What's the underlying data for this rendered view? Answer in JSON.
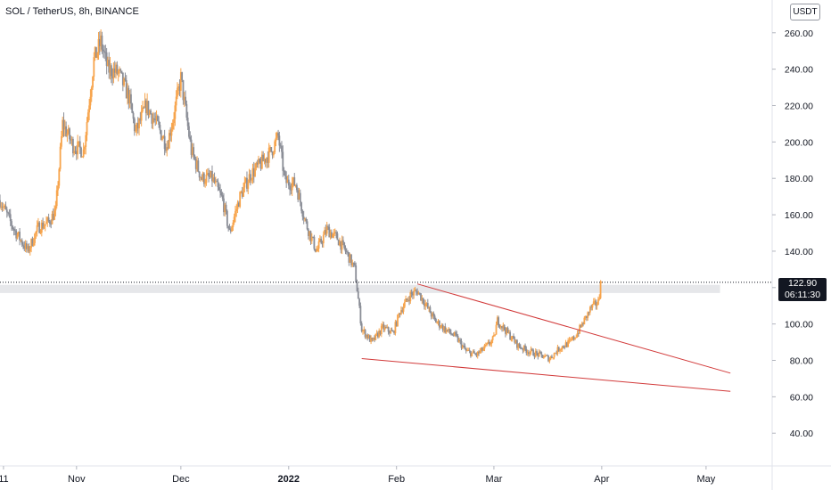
{
  "header": {
    "symbol_title": "SOL / TetherUS, 8h, BINANCE",
    "currency": "USDT"
  },
  "last_price_tag": {
    "price": "122.90",
    "countdown": "06:11:30"
  },
  "colors": {
    "candle_up": "#f7a44c",
    "candle_down": "#8a8d96",
    "trendline": "#d23a3a",
    "support_zone": "#e6e7ea",
    "price_tag_bg": "#131722",
    "axis_text": "#131722"
  },
  "chart_data": {
    "type": "line",
    "title": "SOL / TetherUS, 8h, BINANCE",
    "ylim": [
      22,
      278
    ],
    "y_ticks": [
      "260.00",
      "240.00",
      "220.00",
      "200.00",
      "180.00",
      "160.00",
      "140.00",
      "120.00",
      "100.00",
      "80.00",
      "60.00",
      "40.00"
    ],
    "x_ticks": [
      {
        "label": "11",
        "x": "2021-10-11"
      },
      {
        "label": "Nov",
        "x": "2021-11-01"
      },
      {
        "label": "Dec",
        "x": "2021-12-01"
      },
      {
        "label": "2022",
        "x": "2022-01-01"
      },
      {
        "label": "Feb",
        "x": "2022-02-01"
      },
      {
        "label": "Mar",
        "x": "2022-03-01"
      },
      {
        "label": "Apr",
        "x": "2022-04-01"
      },
      {
        "label": "May",
        "x": "2022-05-01"
      }
    ],
    "xlim": [
      "2021-10-10",
      "2022-05-20"
    ],
    "series": [
      {
        "values": [
          [
            "2021-10-10",
            168
          ],
          [
            "2021-10-14",
            152
          ],
          [
            "2021-10-18",
            140
          ],
          [
            "2021-10-21",
            153
          ],
          [
            "2021-10-24",
            156
          ],
          [
            "2021-10-26",
            162
          ],
          [
            "2021-10-28",
            210
          ],
          [
            "2021-10-31",
            198
          ],
          [
            "2021-11-03",
            195
          ],
          [
            "2021-11-06",
            245
          ],
          [
            "2021-11-08",
            255
          ],
          [
            "2021-11-10",
            240
          ],
          [
            "2021-11-13",
            238
          ],
          [
            "2021-11-16",
            225
          ],
          [
            "2021-11-18",
            205
          ],
          [
            "2021-11-21",
            220
          ],
          [
            "2021-11-24",
            210
          ],
          [
            "2021-11-27",
            198
          ],
          [
            "2021-11-29",
            215
          ],
          [
            "2021-12-01",
            235
          ],
          [
            "2021-12-04",
            195
          ],
          [
            "2021-12-07",
            180
          ],
          [
            "2021-12-10",
            180
          ],
          [
            "2021-12-13",
            168
          ],
          [
            "2021-12-15",
            150
          ],
          [
            "2021-12-18",
            170
          ],
          [
            "2021-12-21",
            182
          ],
          [
            "2021-12-24",
            188
          ],
          [
            "2021-12-27",
            195
          ],
          [
            "2021-12-29",
            203
          ],
          [
            "2021-12-31",
            178
          ],
          [
            "2022-01-03",
            177
          ],
          [
            "2022-01-06",
            155
          ],
          [
            "2022-01-09",
            140
          ],
          [
            "2022-01-12",
            152
          ],
          [
            "2022-01-15",
            147
          ],
          [
            "2022-01-18",
            138
          ],
          [
            "2022-01-20",
            130
          ],
          [
            "2022-01-22",
            97
          ],
          [
            "2022-01-25",
            90
          ],
          [
            "2022-01-28",
            98
          ],
          [
            "2022-01-31",
            95
          ],
          [
            "2022-02-02",
            107
          ],
          [
            "2022-02-05",
            116
          ],
          [
            "2022-02-07",
            118
          ],
          [
            "2022-02-09",
            112
          ],
          [
            "2022-02-12",
            102
          ],
          [
            "2022-02-15",
            97
          ],
          [
            "2022-02-18",
            93
          ],
          [
            "2022-02-21",
            85
          ],
          [
            "2022-02-24",
            83
          ],
          [
            "2022-02-27",
            88
          ],
          [
            "2022-02-29",
            92
          ],
          [
            "2022-03-02",
            102
          ],
          [
            "2022-03-05",
            95
          ],
          [
            "2022-03-08",
            88
          ],
          [
            "2022-03-11",
            85
          ],
          [
            "2022-03-14",
            83
          ],
          [
            "2022-03-17",
            81
          ],
          [
            "2022-03-20",
            87
          ],
          [
            "2022-03-23",
            90
          ],
          [
            "2022-03-25",
            95
          ],
          [
            "2022-03-27",
            102
          ],
          [
            "2022-03-29",
            109
          ],
          [
            "2022-03-31",
            112
          ],
          [
            "2022-04-01",
            122.9
          ]
        ]
      }
    ],
    "annotations": [
      {
        "type": "trendline",
        "from": [
          "2022-01-22",
          81
        ],
        "to": [
          "2022-05-08",
          63
        ]
      },
      {
        "type": "trendline",
        "from": [
          "2022-02-07",
          122
        ],
        "to": [
          "2022-05-08",
          73
        ]
      },
      {
        "type": "zone",
        "y_from": 117,
        "y_to": 121.5,
        "x_to": "2022-05-05"
      },
      {
        "type": "last-price-line",
        "value": 122.9
      }
    ]
  }
}
